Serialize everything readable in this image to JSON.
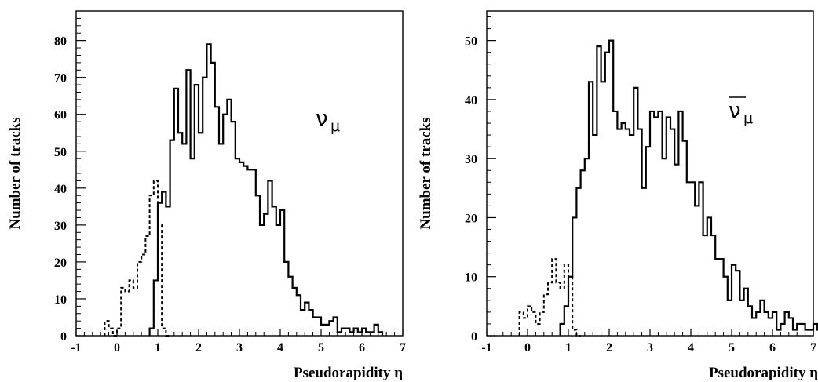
{
  "chart_data": [
    {
      "type": "step",
      "title": "",
      "xlabel": "Pseudorapidity η",
      "ylabel": "Number of tracks",
      "xlim": [
        -1,
        7
      ],
      "ylim": [
        0,
        88
      ],
      "xticks": [
        "-1",
        "0",
        "1",
        "2",
        "3",
        "4",
        "5",
        "6",
        "7"
      ],
      "yticks": [
        "0",
        "10",
        "20",
        "30",
        "40",
        "50",
        "60",
        "70",
        "80"
      ],
      "ytick_values": [
        0,
        10,
        20,
        30,
        40,
        50,
        60,
        70,
        80
      ],
      "annotation": {
        "symbol": "ν",
        "subscript": "μ",
        "bar": false
      },
      "bin_width": 0.1,
      "series": [
        {
          "style": "solid",
          "x_start": 0.8,
          "values": [
            2,
            15,
            36,
            39,
            35,
            53,
            67,
            55,
            52,
            72,
            48,
            68,
            55,
            70,
            79,
            74,
            62,
            52,
            60,
            64,
            58,
            48,
            47,
            46,
            45,
            45,
            38,
            30,
            33,
            42,
            35,
            30,
            34,
            20,
            16,
            13,
            11,
            7,
            9,
            7,
            5,
            5,
            3,
            3,
            4,
            5,
            1,
            2,
            2,
            1,
            2,
            1,
            2,
            1,
            1,
            3,
            1
          ]
        },
        {
          "style": "dashed",
          "x_start": -0.3,
          "values": [
            4,
            2,
            0,
            2,
            13,
            12,
            15,
            13,
            20,
            22,
            27,
            38,
            42,
            30,
            2,
            0
          ]
        }
      ]
    },
    {
      "type": "step",
      "title": "",
      "xlabel": "Pseudorapidity η",
      "ylabel": "Number of tracks",
      "xlim": [
        -1,
        7
      ],
      "ylim": [
        0,
        55
      ],
      "xticks": [
        "-1",
        "0",
        "1",
        "2",
        "3",
        "4",
        "5",
        "6",
        "7"
      ],
      "yticks": [
        "0",
        "10",
        "20",
        "30",
        "40",
        "50"
      ],
      "ytick_values": [
        0,
        10,
        20,
        30,
        40,
        50
      ],
      "annotation": {
        "symbol": "ν",
        "subscript": "μ",
        "bar": true
      },
      "bin_width": 0.1,
      "series": [
        {
          "style": "solid",
          "x_start": 0.8,
          "values": [
            2,
            5,
            10,
            20,
            25,
            28,
            30,
            43,
            34,
            49,
            43,
            48,
            50,
            38,
            35,
            36,
            35,
            34,
            42,
            35,
            25,
            32,
            38,
            37,
            38,
            30,
            37,
            35,
            29,
            38,
            33,
            26,
            26,
            22,
            26,
            17,
            20,
            17,
            13,
            13,
            10,
            6,
            12,
            11,
            6,
            8,
            5,
            3,
            4,
            6,
            4,
            3,
            4,
            1,
            2,
            4,
            3,
            1,
            2,
            2,
            1,
            1,
            2,
            1,
            0,
            1,
            0,
            1
          ]
        },
        {
          "style": "dashed",
          "x_start": -0.2,
          "values": [
            4,
            3,
            5,
            4,
            2,
            4,
            7,
            9,
            13,
            9,
            8,
            12,
            10,
            1,
            0
          ]
        }
      ]
    }
  ]
}
